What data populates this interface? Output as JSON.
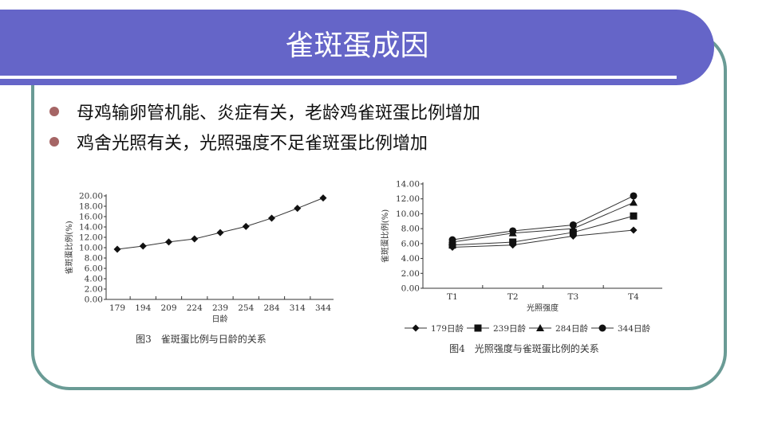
{
  "title": "雀斑蛋成因",
  "bullets": [
    "母鸡输卵管机能、炎症有关，老龄鸡雀斑蛋比例增加",
    "鸡舍光照有关，光照强度不足雀斑蛋比例增加"
  ],
  "colors": {
    "banner": "#6565c8",
    "frame": "#6a9b95",
    "bullet": "#a56565"
  },
  "chart_data": [
    {
      "type": "line",
      "title": "图3　雀斑蛋比例与日龄的关系",
      "xlabel": "日龄",
      "ylabel": "雀斑蛋比例(%)",
      "ylim": [
        0,
        20
      ],
      "ytick_step": 2,
      "categories": [
        "179",
        "194",
        "209",
        "224",
        "239",
        "254",
        "284",
        "314",
        "344"
      ],
      "values": [
        9.7,
        10.3,
        11.1,
        11.7,
        12.9,
        14.1,
        15.7,
        17.6,
        19.6
      ],
      "marker": "diamond",
      "grid": false
    },
    {
      "type": "line",
      "title": "图4　光照强度与雀斑蛋比例的关系",
      "xlabel": "光照强度",
      "ylabel": "雀斑蛋比例(%)",
      "ylim": [
        0,
        14
      ],
      "ytick_step": 2,
      "categories": [
        "T1",
        "T2",
        "T3",
        "T4"
      ],
      "legend": "bottom",
      "grid": false,
      "series": [
        {
          "name": "179日龄",
          "marker": "diamond",
          "values": [
            5.5,
            5.8,
            7.0,
            7.8
          ]
        },
        {
          "name": "239日龄",
          "marker": "square",
          "values": [
            5.8,
            6.2,
            7.5,
            9.7
          ]
        },
        {
          "name": "284日龄",
          "marker": "triangle",
          "values": [
            6.2,
            7.4,
            8.0,
            11.5
          ]
        },
        {
          "name": "344日龄",
          "marker": "circle",
          "values": [
            6.5,
            7.7,
            8.5,
            12.4
          ]
        }
      ]
    }
  ]
}
